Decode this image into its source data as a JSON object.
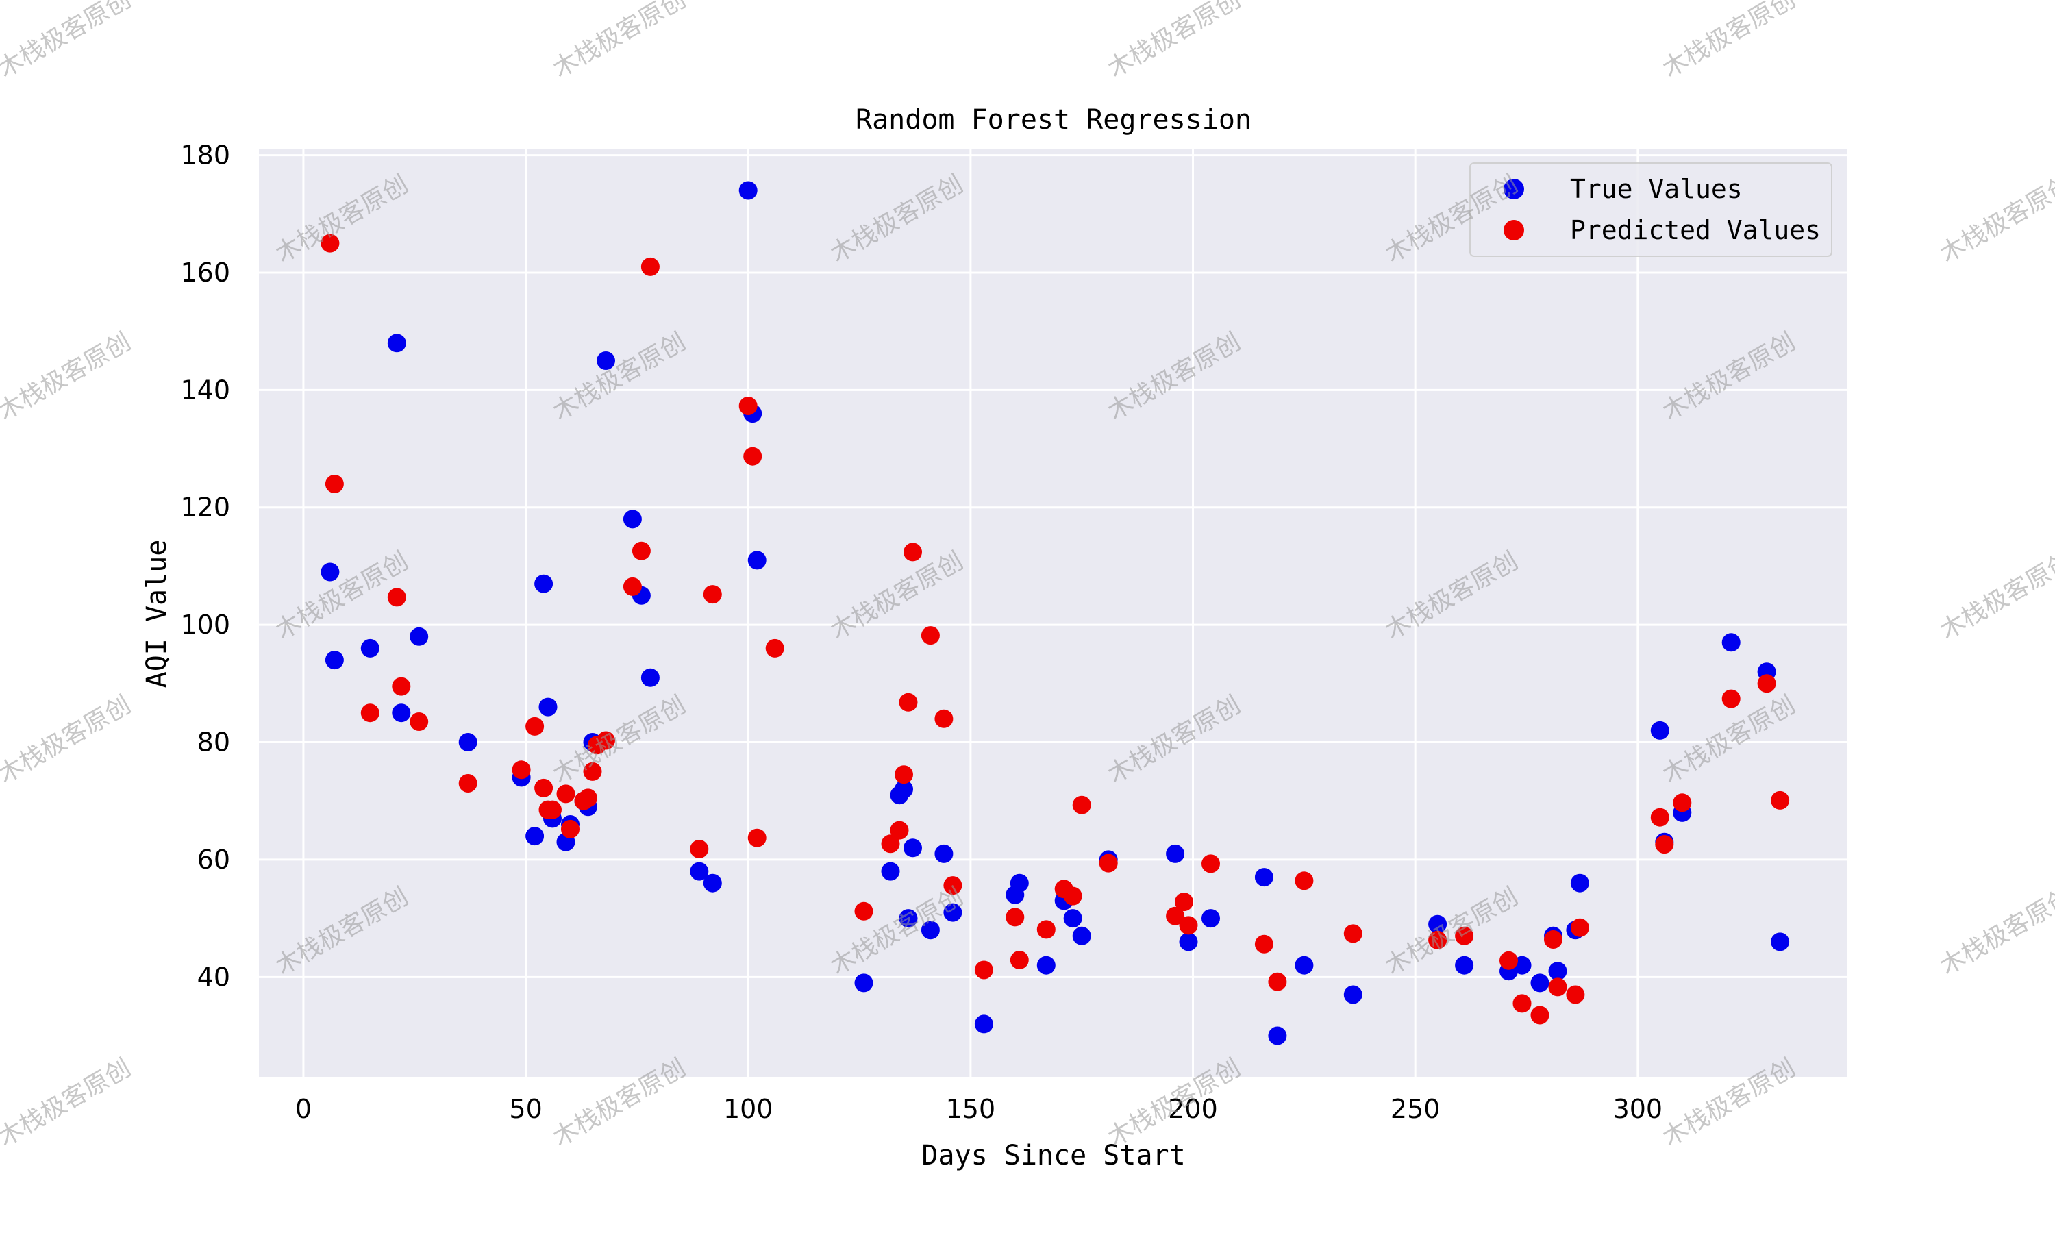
{
  "chart_data": {
    "type": "scatter",
    "title": "Random Forest Regression",
    "xlabel": "Days Since Start",
    "ylabel": "AQI Value",
    "xlim": [
      -10,
      347
    ],
    "ylim": [
      23,
      181
    ],
    "xticks": [
      0,
      50,
      100,
      150,
      200,
      250,
      300
    ],
    "yticks": [
      40,
      60,
      80,
      100,
      120,
      140,
      160,
      180
    ],
    "grid": true,
    "legend_position": "top-right",
    "background_color": "#eaeaf2",
    "grid_color": "#ffffff",
    "watermark_text": "木栈极客原创",
    "series": [
      {
        "name": "True Values",
        "color": "#0000ee",
        "points": [
          [
            6,
            109
          ],
          [
            7,
            94
          ],
          [
            15,
            96
          ],
          [
            21,
            148
          ],
          [
            22,
            85
          ],
          [
            26,
            98
          ],
          [
            37,
            80
          ],
          [
            49,
            74
          ],
          [
            52,
            64
          ],
          [
            54,
            107
          ],
          [
            55,
            86
          ],
          [
            56,
            67
          ],
          [
            59,
            63
          ],
          [
            60,
            66
          ],
          [
            63,
            70
          ],
          [
            64,
            69
          ],
          [
            65,
            80
          ],
          [
            68,
            145
          ],
          [
            74,
            118
          ],
          [
            76,
            105
          ],
          [
            78,
            91
          ],
          [
            89,
            58
          ],
          [
            92,
            56
          ],
          [
            100,
            174
          ],
          [
            101,
            136
          ],
          [
            102,
            111
          ],
          [
            126,
            39
          ],
          [
            132,
            58
          ],
          [
            134,
            71
          ],
          [
            135,
            72
          ],
          [
            137,
            62
          ],
          [
            136,
            50
          ],
          [
            141,
            48
          ],
          [
            144,
            61
          ],
          [
            146,
            51
          ],
          [
            153,
            32
          ],
          [
            160,
            54
          ],
          [
            161,
            56
          ],
          [
            167,
            42
          ],
          [
            171,
            53
          ],
          [
            173,
            50
          ],
          [
            175,
            47
          ],
          [
            181,
            60
          ],
          [
            196,
            61
          ],
          [
            199,
            46
          ],
          [
            204,
            50
          ],
          [
            216,
            57
          ],
          [
            219,
            30
          ],
          [
            225,
            42
          ],
          [
            236,
            37
          ],
          [
            255,
            49
          ],
          [
            261,
            42
          ],
          [
            271,
            41
          ],
          [
            274,
            42
          ],
          [
            278,
            39
          ],
          [
            281,
            47
          ],
          [
            282,
            41
          ],
          [
            286,
            48
          ],
          [
            287,
            56
          ],
          [
            305,
            82
          ],
          [
            306,
            63
          ],
          [
            310,
            68
          ],
          [
            321,
            97
          ],
          [
            329,
            92
          ],
          [
            332,
            46
          ]
        ]
      },
      {
        "name": "Predicted Values",
        "color": "#ee0000",
        "points": [
          [
            6,
            165
          ],
          [
            7,
            124
          ],
          [
            15,
            85
          ],
          [
            21,
            104.7
          ],
          [
            22,
            89.5
          ],
          [
            26,
            83.5
          ],
          [
            37,
            73
          ],
          [
            49,
            75.3
          ],
          [
            52,
            82.7
          ],
          [
            54,
            72.2
          ],
          [
            55,
            68.5
          ],
          [
            56,
            68.5
          ],
          [
            59,
            71.2
          ],
          [
            60,
            65.2
          ],
          [
            63,
            70
          ],
          [
            64,
            70.5
          ],
          [
            65,
            75
          ],
          [
            66,
            79.5
          ],
          [
            68,
            80.3
          ],
          [
            74,
            106.5
          ],
          [
            76,
            112.6
          ],
          [
            78,
            161
          ],
          [
            89,
            61.8
          ],
          [
            92,
            105.2
          ],
          [
            100,
            137.3
          ],
          [
            101,
            128.7
          ],
          [
            102,
            63.7
          ],
          [
            106,
            96
          ],
          [
            126,
            51.2
          ],
          [
            132,
            62.7
          ],
          [
            134,
            65
          ],
          [
            135,
            74.5
          ],
          [
            136,
            86.8
          ],
          [
            137,
            112.4
          ],
          [
            141,
            98.2
          ],
          [
            144,
            84
          ],
          [
            146,
            55.6
          ],
          [
            153,
            41.2
          ],
          [
            160,
            50.2
          ],
          [
            161,
            42.9
          ],
          [
            167,
            48.1
          ],
          [
            171,
            55
          ],
          [
            173,
            53.8
          ],
          [
            175,
            69.3
          ],
          [
            181,
            59.4
          ],
          [
            196,
            50.4
          ],
          [
            198,
            52.8
          ],
          [
            199,
            48.8
          ],
          [
            204,
            59.3
          ],
          [
            216,
            45.6
          ],
          [
            219,
            39.2
          ],
          [
            225,
            56.4
          ],
          [
            236,
            47.4
          ],
          [
            255,
            46.3
          ],
          [
            261,
            47
          ],
          [
            271,
            42.8
          ],
          [
            274,
            35.5
          ],
          [
            278,
            33.5
          ],
          [
            281,
            46.4
          ],
          [
            282,
            38.3
          ],
          [
            286,
            37
          ],
          [
            287,
            48.4
          ],
          [
            305,
            67.2
          ],
          [
            306,
            62.6
          ],
          [
            310,
            69.7
          ],
          [
            321,
            87.4
          ],
          [
            329,
            90
          ],
          [
            332,
            70.1
          ]
        ]
      }
    ]
  }
}
